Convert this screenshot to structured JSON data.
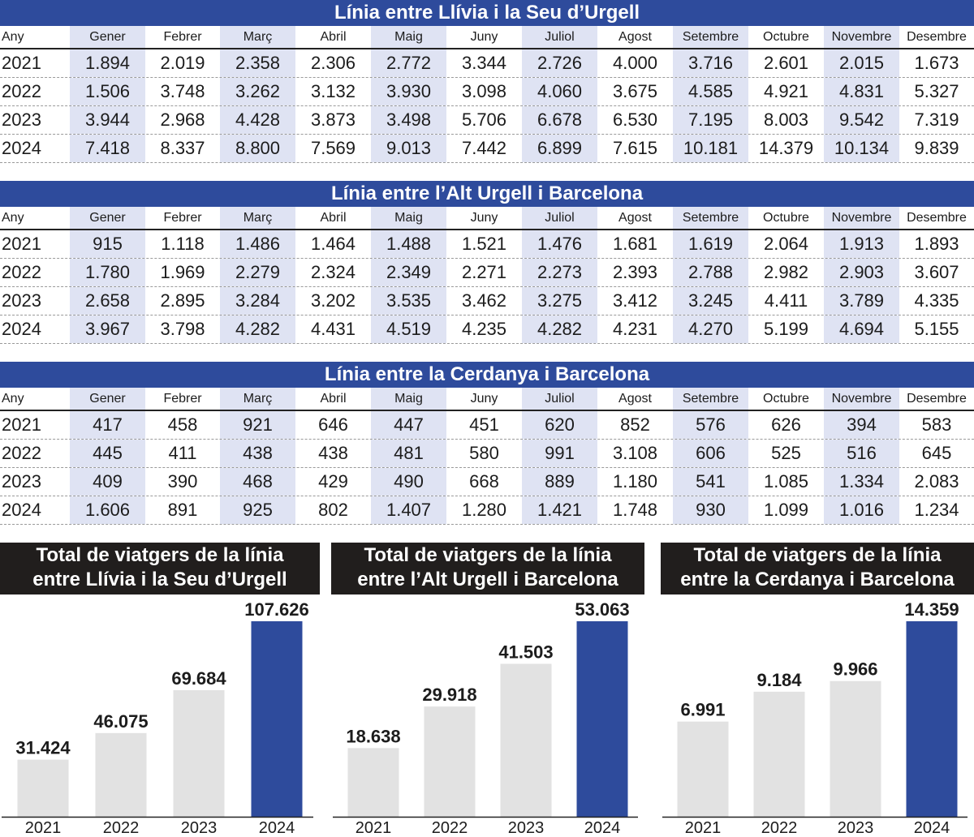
{
  "colors": {
    "header_blue": "#2e4b9c",
    "shade": "#dfe3f3",
    "bar_gray": "#e2e2e2",
    "bar_blue": "#2e4b9c",
    "panel_dark": "#211e1d"
  },
  "tables": [
    {
      "title": "Línia entre Llívia i la Seu d’Urgell",
      "columns": [
        "Any",
        "Gener",
        "Febrer",
        "Març",
        "Abril",
        "Maig",
        "Juny",
        "Juliol",
        "Agost",
        "Setembre",
        "Octubre",
        "Novembre",
        "Desembre"
      ],
      "rows": [
        [
          "2021",
          "1.894",
          "2.019",
          "2.358",
          "2.306",
          "2.772",
          "3.344",
          "2.726",
          "4.000",
          "3.716",
          "2.601",
          "2.015",
          "1.673"
        ],
        [
          "2022",
          "1.506",
          "3.748",
          "3.262",
          "3.132",
          "3.930",
          "3.098",
          "4.060",
          "3.675",
          "4.585",
          "4.921",
          "4.831",
          "5.327"
        ],
        [
          "2023",
          "3.944",
          "2.968",
          "4.428",
          "3.873",
          "3.498",
          "5.706",
          "6.678",
          "6.530",
          "7.195",
          "8.003",
          "9.542",
          "7.319"
        ],
        [
          "2024",
          "7.418",
          "8.337",
          "8.800",
          "7.569",
          "9.013",
          "7.442",
          "6.899",
          "7.615",
          "10.181",
          "14.379",
          "10.134",
          "9.839"
        ]
      ]
    },
    {
      "title": "Línia entre l’Alt Urgell i Barcelona",
      "columns": [
        "Any",
        "Gener",
        "Febrer",
        "Març",
        "Abril",
        "Maig",
        "Juny",
        "Juliol",
        "Agost",
        "Setembre",
        "Octubre",
        "Novembre",
        "Desembre"
      ],
      "rows": [
        [
          "2021",
          "915",
          "1.118",
          "1.486",
          "1.464",
          "1.488",
          "1.521",
          "1.476",
          "1.681",
          "1.619",
          "2.064",
          "1.913",
          "1.893"
        ],
        [
          "2022",
          "1.780",
          "1.969",
          "2.279",
          "2.324",
          "2.349",
          "2.271",
          "2.273",
          "2.393",
          "2.788",
          "2.982",
          "2.903",
          "3.607"
        ],
        [
          "2023",
          "2.658",
          "2.895",
          "3.284",
          "3.202",
          "3.535",
          "3.462",
          "3.275",
          "3.412",
          "3.245",
          "4.411",
          "3.789",
          "4.335"
        ],
        [
          "2024",
          "3.967",
          "3.798",
          "4.282",
          "4.431",
          "4.519",
          "4.235",
          "4.282",
          "4.231",
          "4.270",
          "5.199",
          "4.694",
          "5.155"
        ]
      ]
    },
    {
      "title": "Línia entre la Cerdanya i Barcelona",
      "columns": [
        "Any",
        "Gener",
        "Febrer",
        "Març",
        "Abril",
        "Maig",
        "Juny",
        "Juliol",
        "Agost",
        "Setembre",
        "Octubre",
        "Novembre",
        "Desembre"
      ],
      "rows": [
        [
          "2021",
          "417",
          "458",
          "921",
          "646",
          "447",
          "451",
          "620",
          "852",
          "576",
          "626",
          "394",
          "583"
        ],
        [
          "2022",
          "445",
          "411",
          "438",
          "438",
          "481",
          "580",
          "991",
          "3.108",
          "606",
          "525",
          "516",
          "645"
        ],
        [
          "2023",
          "409",
          "390",
          "468",
          "429",
          "490",
          "668",
          "889",
          "1.180",
          "541",
          "1.085",
          "1.334",
          "2.083"
        ],
        [
          "2024",
          "1.606",
          "891",
          "925",
          "802",
          "1.407",
          "1.280",
          "1.421",
          "1.748",
          "930",
          "1.099",
          "1.016",
          "1.234"
        ]
      ]
    }
  ],
  "chart_data": [
    {
      "type": "bar",
      "title": "Total de viatgers de la línia entre Llívia i la Seu d’Urgell",
      "title_lines": [
        "Total de viatgers de la línia",
        "entre Llívia i la Seu d’Urgell"
      ],
      "categories": [
        "2021",
        "2022",
        "2023",
        "2024"
      ],
      "values": [
        31424,
        46075,
        69684,
        107626
      ],
      "labels": [
        "31.424",
        "46.075",
        "69.684",
        "107.626"
      ],
      "highlight": "2024",
      "ylim": [
        0,
        107626
      ]
    },
    {
      "type": "bar",
      "title": "Total de viatgers de la línia entre l’Alt Urgell i Barcelona",
      "title_lines": [
        "Total de viatgers de la línia",
        "entre l’Alt Urgell i Barcelona"
      ],
      "categories": [
        "2021",
        "2022",
        "2023",
        "2024"
      ],
      "values": [
        18638,
        29918,
        41503,
        53063
      ],
      "labels": [
        "18.638",
        "29.918",
        "41.503",
        "53.063"
      ],
      "highlight": "2024",
      "ylim": [
        0,
        53063
      ]
    },
    {
      "type": "bar",
      "title": "Total de viatgers de la línia entre la Cerdanya i Barcelona",
      "title_lines": [
        "Total de viatgers de la línia",
        "entre la Cerdanya i Barcelona"
      ],
      "categories": [
        "2021",
        "2022",
        "2023",
        "2024"
      ],
      "values": [
        6991,
        9184,
        9966,
        14359
      ],
      "labels": [
        "6.991",
        "9.184",
        "9.966",
        "14.359"
      ],
      "highlight": "2024",
      "ylim": [
        0,
        14359
      ]
    }
  ]
}
